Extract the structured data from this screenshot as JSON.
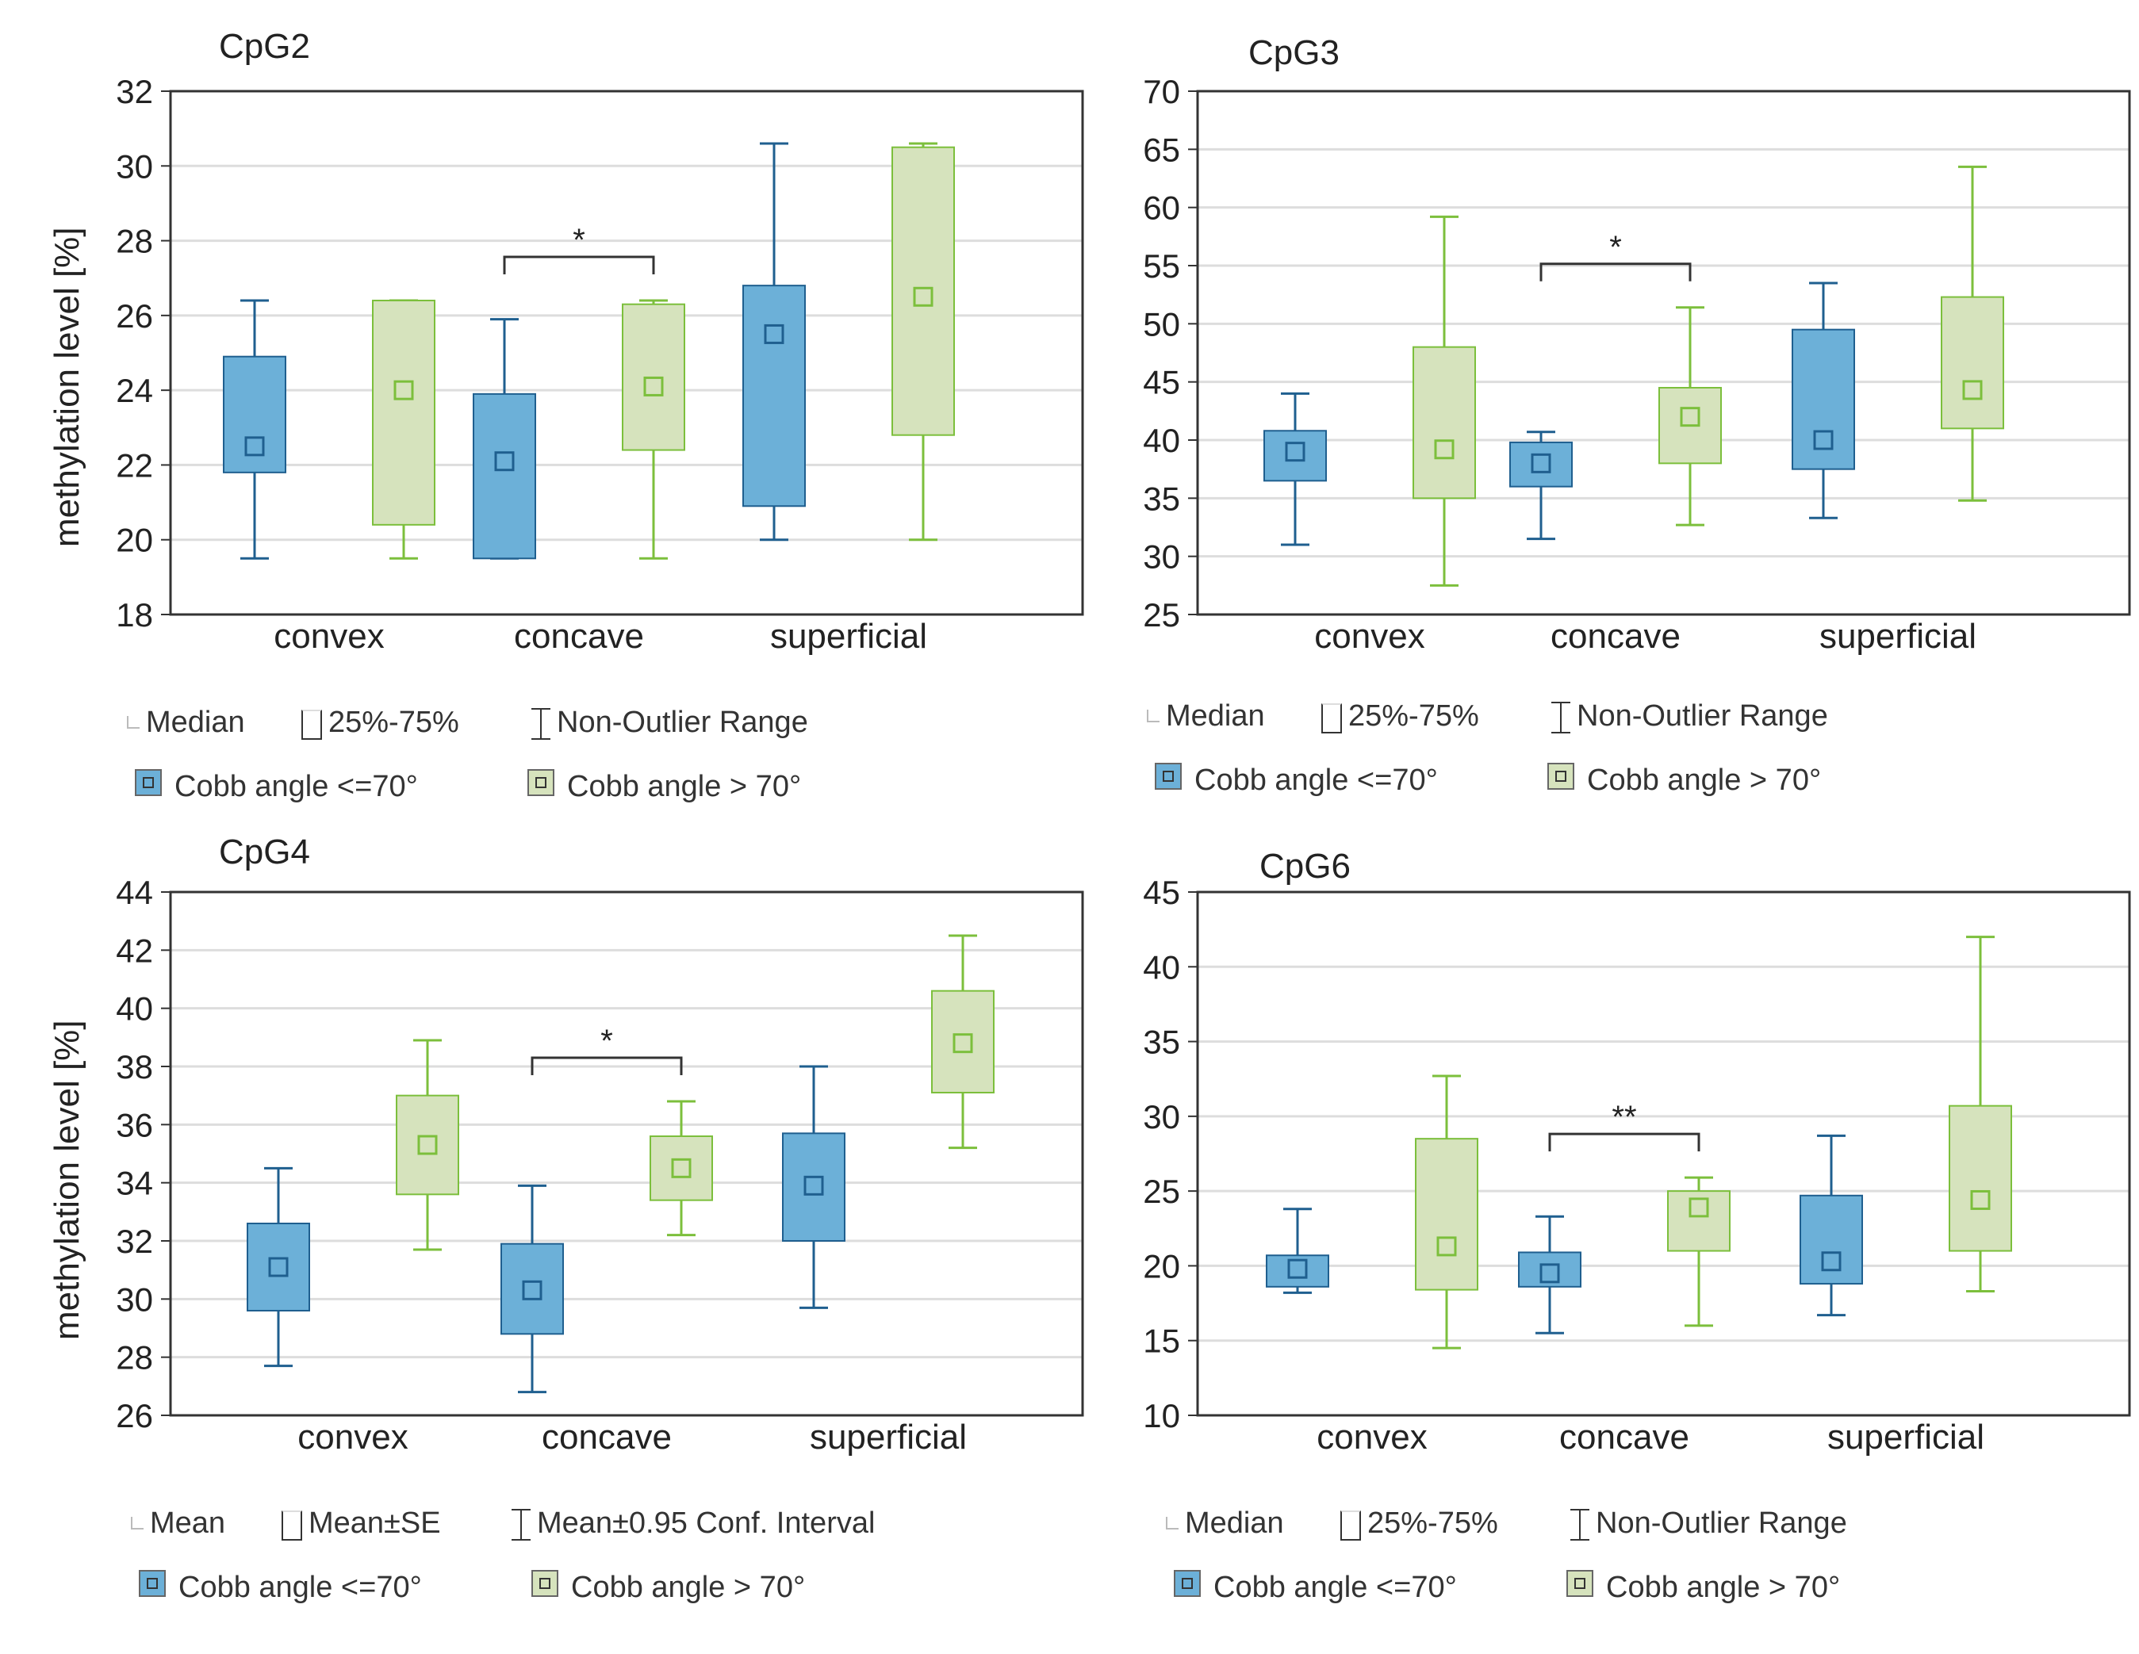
{
  "legend_boxplot": {
    "median": "Median",
    "iqr": "25%-75%",
    "range": "Non-Outlier Range"
  },
  "legend_mean": {
    "mean": "Mean",
    "se": "Mean±SE",
    "ci": "Mean±0.95 Conf. Interval"
  },
  "groups": {
    "low": "Cobb angle <=70°",
    "high": "Cobb angle > 70°"
  },
  "colors": {
    "low_fill": "#6cb0d8",
    "low_edge": "#1f5f8f",
    "high_fill": "#d6e3bd",
    "high_edge": "#7cbf3c",
    "grid": "#dddddd"
  },
  "chart_data": [
    {
      "type": "boxplot",
      "title": "CpG2",
      "ylabel": "methylation level [%]",
      "ylim": [
        18,
        32
      ],
      "yticks": [
        "18",
        "20",
        "22",
        "24",
        "26",
        "28",
        "30",
        "32"
      ],
      "categories": [
        "convex",
        "concave",
        "superficial"
      ],
      "significance": {
        "category": "concave",
        "label": "*"
      },
      "series": [
        {
          "name": "Cobb angle <=70°",
          "boxes": [
            {
              "center": 22.5,
              "q1": 21.8,
              "q3": 24.9,
              "min": 19.5,
              "max": 26.4
            },
            {
              "center": 22.1,
              "q1": 19.5,
              "q3": 23.9,
              "min": 19.5,
              "max": 25.9
            },
            {
              "center": 25.5,
              "q1": 20.9,
              "q3": 26.8,
              "min": 20.0,
              "max": 30.6
            }
          ]
        },
        {
          "name": "Cobb angle > 70°",
          "boxes": [
            {
              "center": 24.0,
              "q1": 20.4,
              "q3": 26.4,
              "min": 19.5,
              "max": 26.4
            },
            {
              "center": 24.1,
              "q1": 22.4,
              "q3": 26.3,
              "min": 19.5,
              "max": 26.4
            },
            {
              "center": 26.5,
              "q1": 22.8,
              "q3": 30.5,
              "min": 20.0,
              "max": 30.6
            }
          ]
        }
      ]
    },
    {
      "type": "boxplot",
      "title": "CpG3",
      "ylabel": "",
      "ylim": [
        25,
        70
      ],
      "yticks": [
        "25",
        "30",
        "35",
        "40",
        "45",
        "50",
        "55",
        "60",
        "65",
        "70"
      ],
      "categories": [
        "convex",
        "concave",
        "superficial"
      ],
      "significance": {
        "category": "concave",
        "label": "*"
      },
      "series": [
        {
          "name": "Cobb angle <=70°",
          "boxes": [
            {
              "center": 39.0,
              "q1": 36.5,
              "q3": 40.8,
              "min": 31.0,
              "max": 44.0
            },
            {
              "center": 38.0,
              "q1": 36.0,
              "q3": 39.8,
              "min": 31.5,
              "max": 40.7
            },
            {
              "center": 40.0,
              "q1": 37.5,
              "q3": 49.5,
              "min": 33.3,
              "max": 53.5
            }
          ]
        },
        {
          "name": "Cobb angle > 70°",
          "boxes": [
            {
              "center": 39.2,
              "q1": 35.0,
              "q3": 48.0,
              "min": 27.5,
              "max": 59.2
            },
            {
              "center": 42.0,
              "q1": 38.0,
              "q3": 44.5,
              "min": 32.7,
              "max": 51.4
            },
            {
              "center": 44.3,
              "q1": 41.0,
              "q3": 52.3,
              "min": 34.8,
              "max": 63.5
            }
          ]
        }
      ]
    },
    {
      "type": "boxplot",
      "title": "CpG4",
      "ylabel": "methylation level [%]",
      "ylim": [
        26,
        44
      ],
      "yticks": [
        "26",
        "28",
        "30",
        "32",
        "34",
        "36",
        "38",
        "40",
        "42",
        "44"
      ],
      "categories": [
        "convex",
        "concave",
        "superficial"
      ],
      "significance": {
        "category": "concave",
        "label": "*"
      },
      "series": [
        {
          "name": "Cobb angle <=70°",
          "boxes": [
            {
              "center": 31.1,
              "q1": 29.6,
              "q3": 32.6,
              "min": 27.7,
              "max": 34.5
            },
            {
              "center": 30.3,
              "q1": 28.8,
              "q3": 31.9,
              "min": 26.8,
              "max": 33.9
            },
            {
              "center": 33.9,
              "q1": 32.0,
              "q3": 35.7,
              "min": 29.7,
              "max": 38.0
            }
          ]
        },
        {
          "name": "Cobb angle > 70°",
          "boxes": [
            {
              "center": 35.3,
              "q1": 33.6,
              "q3": 37.0,
              "min": 31.7,
              "max": 38.9
            },
            {
              "center": 34.5,
              "q1": 33.4,
              "q3": 35.6,
              "min": 32.2,
              "max": 36.8
            },
            {
              "center": 38.8,
              "q1": 37.1,
              "q3": 40.6,
              "min": 35.2,
              "max": 42.5
            }
          ]
        }
      ]
    },
    {
      "type": "boxplot",
      "title": "CpG6",
      "ylabel": "",
      "ylim": [
        10,
        45
      ],
      "yticks": [
        "10",
        "15",
        "20",
        "25",
        "30",
        "35",
        "40",
        "45"
      ],
      "categories": [
        "convex",
        "concave",
        "superficial"
      ],
      "significance": {
        "category": "concave",
        "label": "**"
      },
      "series": [
        {
          "name": "Cobb angle <=70°",
          "boxes": [
            {
              "center": 19.8,
              "q1": 18.6,
              "q3": 20.7,
              "min": 18.2,
              "max": 23.8
            },
            {
              "center": 19.5,
              "q1": 18.6,
              "q3": 20.9,
              "min": 15.5,
              "max": 23.3
            },
            {
              "center": 20.3,
              "q1": 18.8,
              "q3": 24.7,
              "min": 16.7,
              "max": 28.7
            }
          ]
        },
        {
          "name": "Cobb angle > 70°",
          "boxes": [
            {
              "center": 21.3,
              "q1": 18.4,
              "q3": 28.5,
              "min": 14.5,
              "max": 32.7
            },
            {
              "center": 23.9,
              "q1": 21.0,
              "q3": 25.0,
              "min": 16.0,
              "max": 25.9
            },
            {
              "center": 24.4,
              "q1": 21.0,
              "q3": 30.7,
              "min": 18.3,
              "max": 42.0
            }
          ]
        }
      ]
    }
  ]
}
